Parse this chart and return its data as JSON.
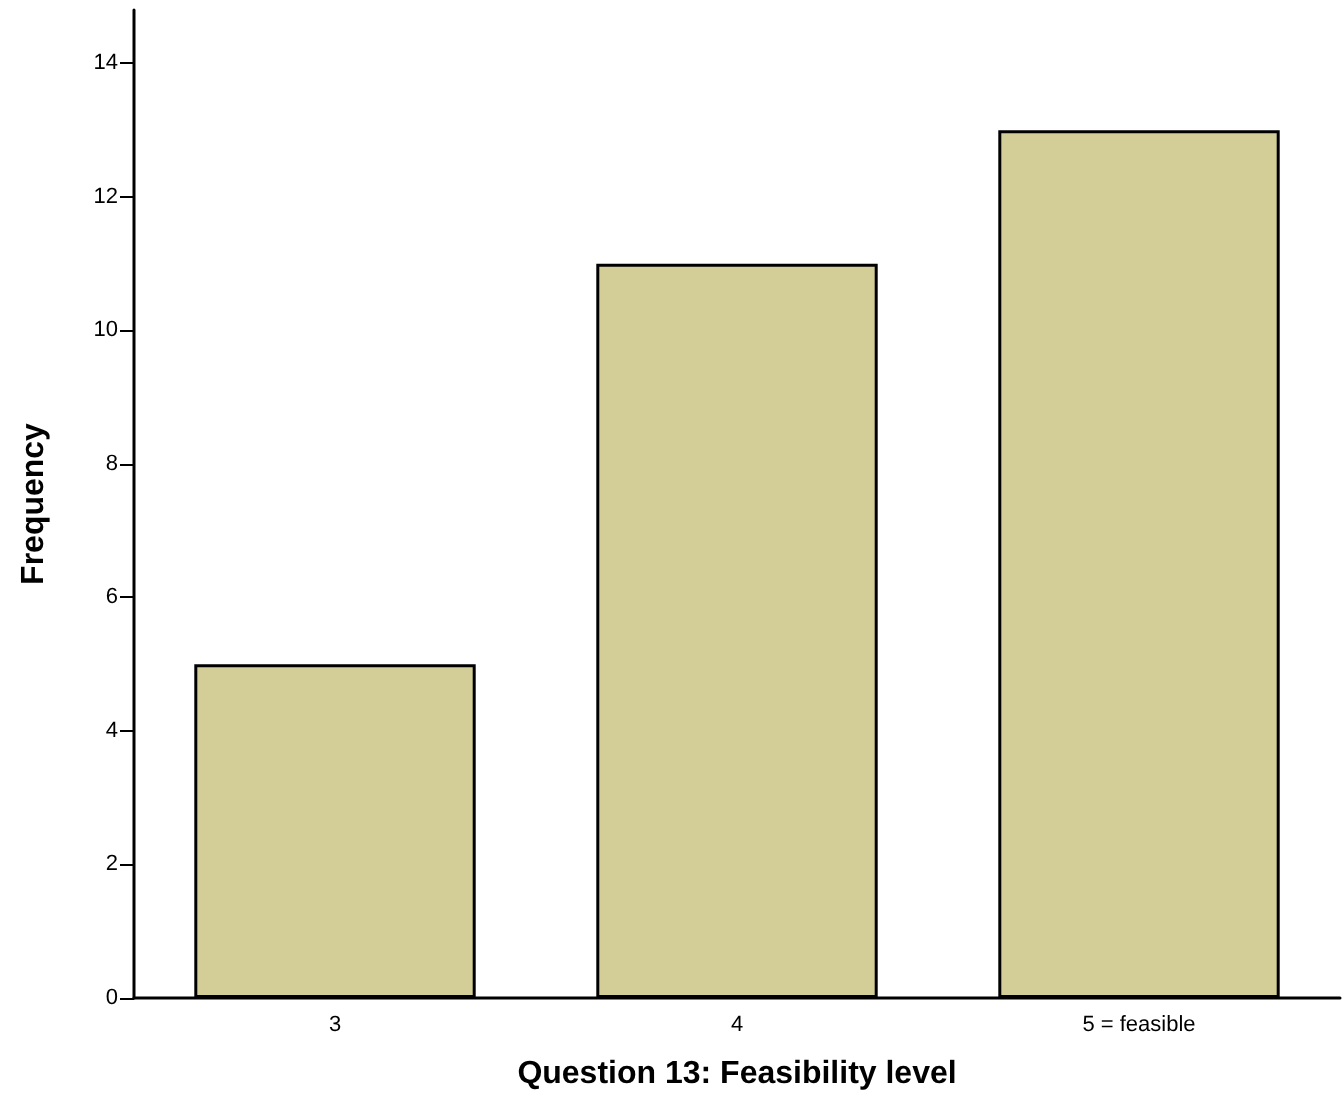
{
  "chart_data": {
    "type": "bar",
    "xlabel": "Question 13: Feasibility level",
    "ylabel": "Frequency",
    "categories": [
      "3",
      "4",
      "5 = feasible"
    ],
    "values": [
      5,
      11,
      13
    ],
    "color": "#d3ce97",
    "ylim": [
      0,
      14.8
    ],
    "yticks": [
      0,
      2,
      4,
      6,
      8,
      10,
      12,
      14
    ],
    "grid": false
  }
}
